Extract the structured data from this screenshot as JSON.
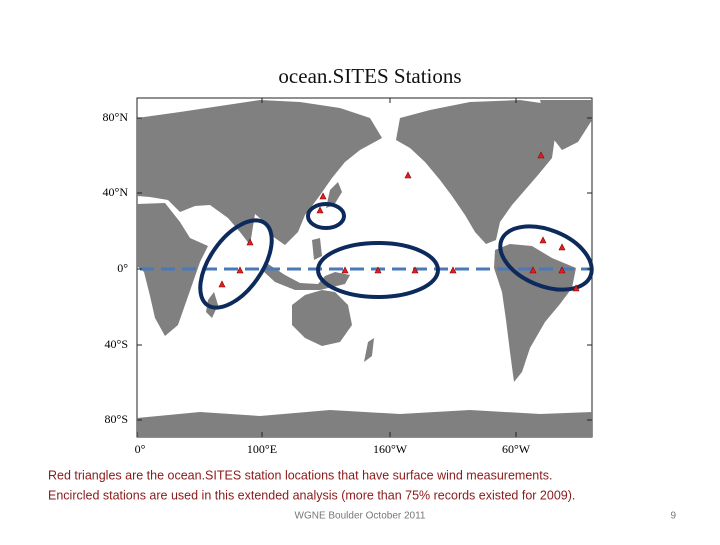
{
  "title": "ocean.SITES Stations",
  "map": {
    "lat_labels": [
      "80°N",
      "40°N",
      "0°",
      "40°S",
      "80°S"
    ],
    "lon_labels": [
      "0°",
      "100°E",
      "160°W",
      "60°W"
    ]
  },
  "caption": [
    "Red triangles are the ocean.SITES station locations that have surface wind measurements.",
    "Encircled stations are used in this extended analysis (more than 75% records existed for 2009)."
  ],
  "footer": {
    "text": "WGNE  Boulder October 2011",
    "page": "9"
  }
}
